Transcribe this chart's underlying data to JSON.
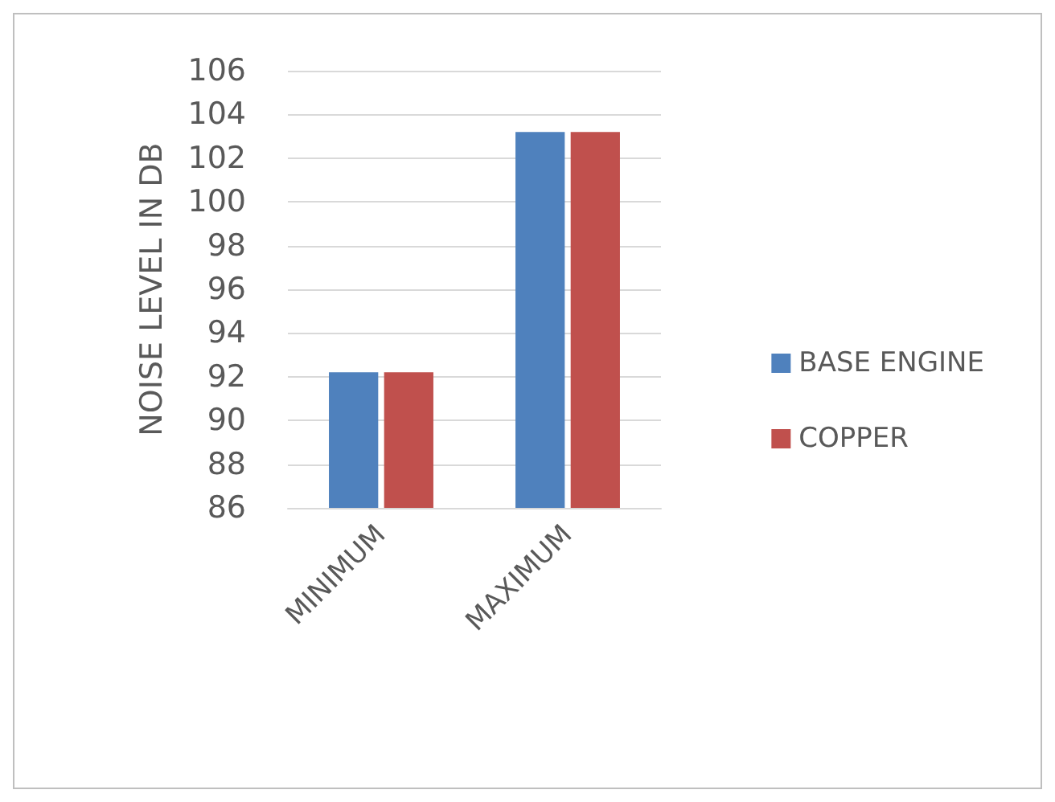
{
  "chart_data": {
    "type": "bar",
    "ylabel": "NOISE LEVEL IN DB",
    "categories": [
      "MINIMUM",
      "MAXIMUM"
    ],
    "series": [
      {
        "name": "BASE ENGINE",
        "color": "#4f81bd",
        "values": [
          92.2,
          103.2
        ]
      },
      {
        "name": "COPPER",
        "color": "#c0504d",
        "values": [
          92.2,
          103.2
        ]
      }
    ],
    "ylim": [
      86,
      106
    ],
    "yticks": [
      86,
      88,
      90,
      92,
      94,
      96,
      98,
      100,
      102,
      104,
      106
    ],
    "grid": "y",
    "legend": "right"
  }
}
